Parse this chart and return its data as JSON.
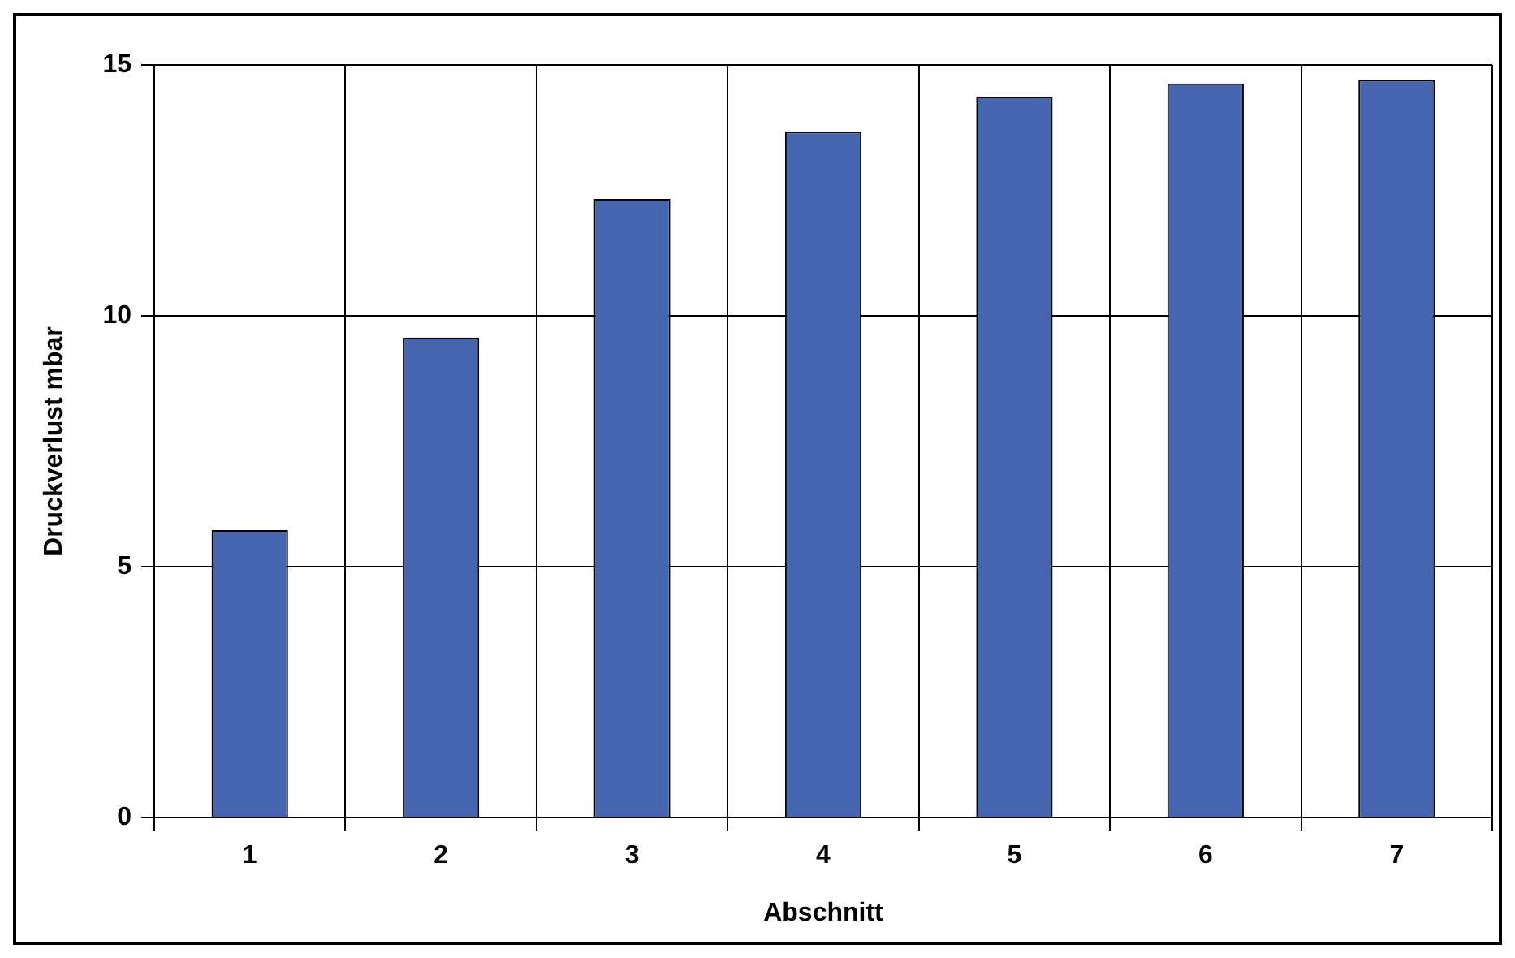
{
  "chart_data": {
    "type": "bar",
    "xlabel": "Abschnitt",
    "ylabel": "Druckverlust mbar",
    "categories": [
      "1",
      "2",
      "3",
      "4",
      "5",
      "6",
      "7"
    ],
    "values": [
      5.73,
      9.57,
      12.33,
      13.67,
      14.37,
      14.63,
      14.7
    ],
    "color": "#4565ae",
    "ylim": [
      0,
      15
    ],
    "yticks": [
      0,
      5,
      10,
      15
    ],
    "grid": true,
    "legend": false
  }
}
